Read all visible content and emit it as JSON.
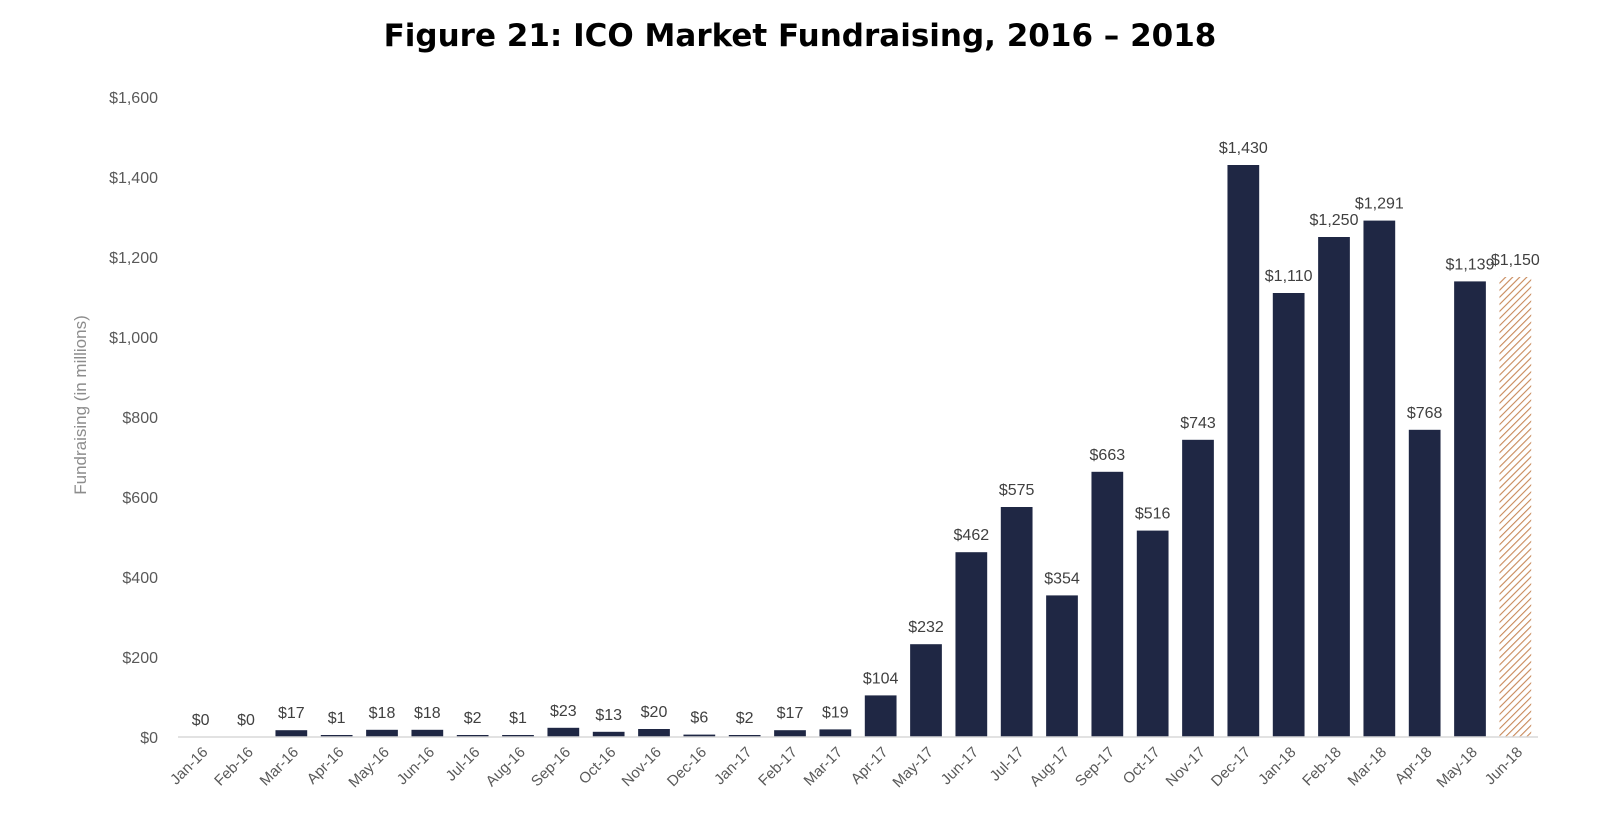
{
  "chart_data": {
    "type": "bar",
    "title": "Figure 21: ICO Market Fundraising, 2016 – 2018",
    "xlabel": "",
    "ylabel": "Fundraising (in millions)",
    "ylim": [
      0,
      1600
    ],
    "yticks": [
      0,
      200,
      400,
      600,
      800,
      1000,
      1200,
      1400,
      1600
    ],
    "ytick_labels": [
      "$0",
      "$200",
      "$400",
      "$600",
      "$800",
      "$1,000",
      "$1,200",
      "$1,400",
      "$1,600"
    ],
    "grid": false,
    "legend": "none",
    "categories": [
      "Jan-16",
      "Feb-16",
      "Mar-16",
      "Apr-16",
      "May-16",
      "Jun-16",
      "Jul-16",
      "Aug-16",
      "Sep-16",
      "Oct-16",
      "Nov-16",
      "Dec-16",
      "Jan-17",
      "Feb-17",
      "Mar-17",
      "Apr-17",
      "May-17",
      "Jun-17",
      "Jul-17",
      "Aug-17",
      "Sep-17",
      "Oct-17",
      "Nov-17",
      "Dec-17",
      "Jan-18",
      "Feb-18",
      "Mar-18",
      "Apr-18",
      "May-18",
      "Jun-18"
    ],
    "values": [
      0,
      0,
      17,
      1,
      18,
      18,
      2,
      1,
      23,
      13,
      20,
      6,
      2,
      17,
      19,
      104,
      232,
      462,
      575,
      354,
      663,
      516,
      743,
      1430,
      1110,
      1250,
      1291,
      768,
      1139,
      1150
    ],
    "data_labels": [
      "$0",
      "$0",
      "$17",
      "$1",
      "$18",
      "$18",
      "$2",
      "$1",
      "$23",
      "$13",
      "$20",
      "$6",
      "$2",
      "$17",
      "$19",
      "$104",
      "$232",
      "$462",
      "$575",
      "$354",
      "$663",
      "$516",
      "$743",
      "$1,430",
      "$1,110",
      "$1,250",
      "$1,291",
      "$768",
      "$1,139",
      "$1,150"
    ],
    "projected": [
      false,
      false,
      false,
      false,
      false,
      false,
      false,
      false,
      false,
      false,
      false,
      false,
      false,
      false,
      false,
      false,
      false,
      false,
      false,
      false,
      false,
      false,
      false,
      false,
      false,
      false,
      false,
      false,
      false,
      true
    ],
    "colors": {
      "bar": "#1f2744",
      "projected": "#c8895a",
      "axis": "#d9d9d9"
    }
  }
}
